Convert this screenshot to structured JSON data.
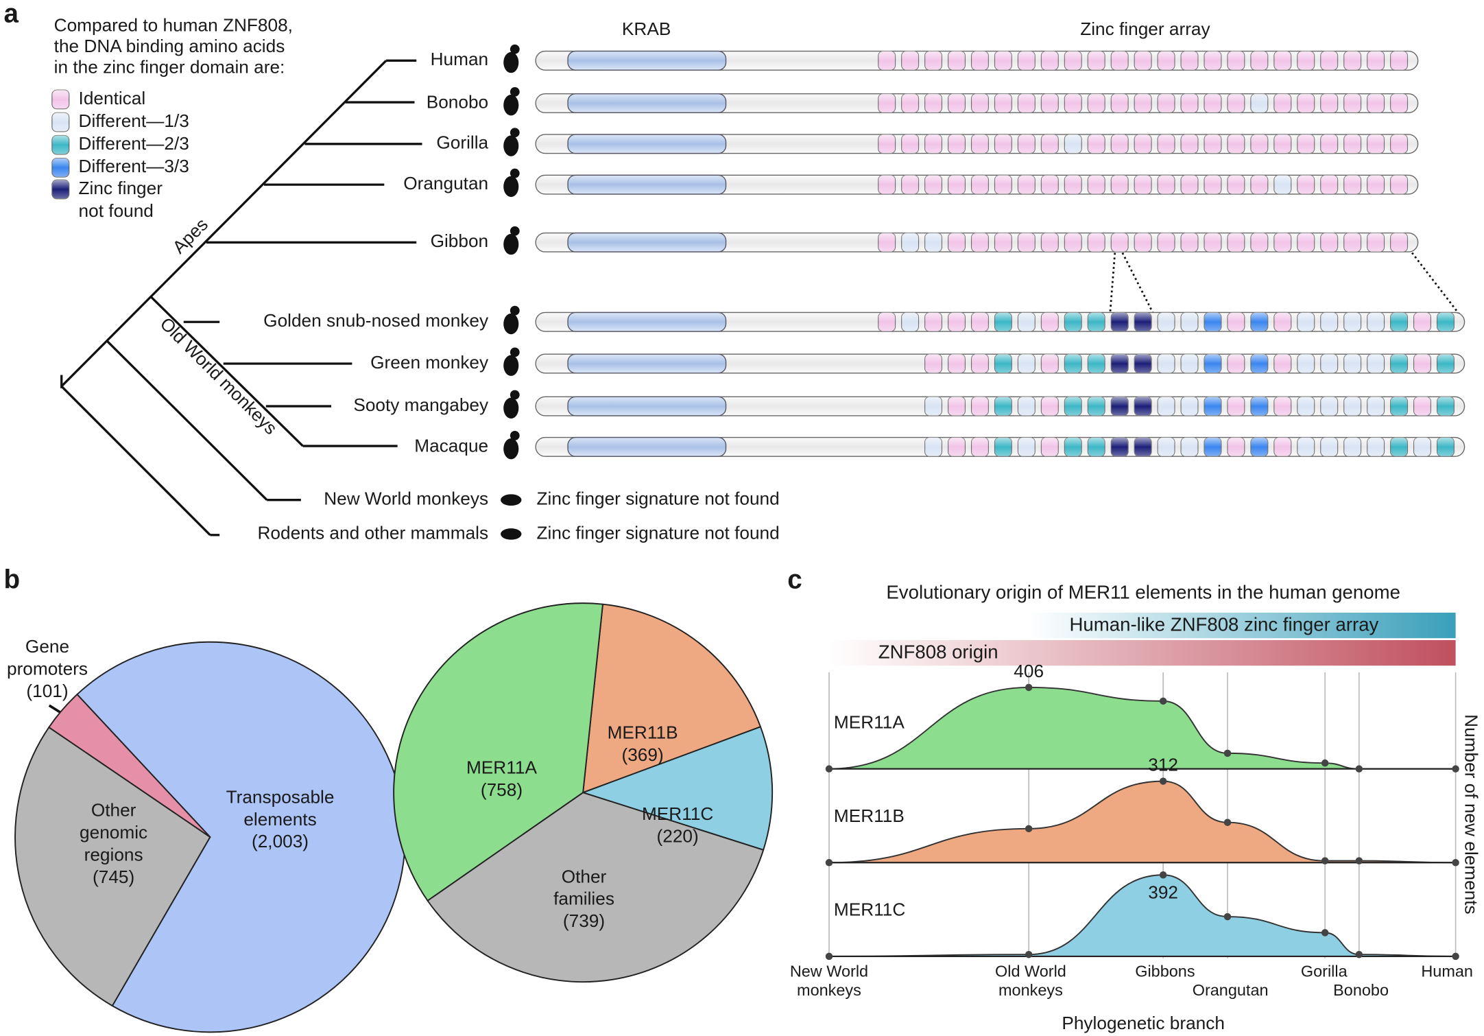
{
  "panel_a": {
    "label": "a",
    "legend_title": [
      "Compared to human ZNF808,",
      "the DNA binding amino acids",
      "in the zinc finger domain are:"
    ],
    "legend": [
      {
        "lines": [
          "Identical"
        ],
        "color": "#f2c4e8"
      },
      {
        "lines": [
          "Different—1/3"
        ],
        "color": "#d8e3f4"
      },
      {
        "lines": [
          "Different—2/3"
        ],
        "color": "#3db7c6"
      },
      {
        "lines": [
          "Different—3/3"
        ],
        "color": "#3b86ef"
      },
      {
        "lines": [
          "Zinc finger",
          "not found"
        ],
        "color": "#1c1f78"
      }
    ],
    "domains": [
      "KRAB",
      "Zinc finger array"
    ],
    "clades": [
      "Apes",
      "Old World monkeys"
    ],
    "species": [
      {
        "name": "Human",
        "fingers": [
          0,
          0,
          0,
          0,
          0,
          0,
          0,
          0,
          0,
          0,
          0,
          0,
          0,
          0,
          0,
          0,
          0,
          0,
          0,
          0,
          0,
          0,
          0
        ]
      },
      {
        "name": "Bonobo",
        "fingers": [
          0,
          0,
          0,
          0,
          0,
          0,
          0,
          0,
          0,
          0,
          0,
          0,
          0,
          0,
          0,
          0,
          1,
          0,
          0,
          0,
          0,
          0,
          0
        ]
      },
      {
        "name": "Gorilla",
        "fingers": [
          0,
          0,
          0,
          0,
          0,
          0,
          0,
          0,
          1,
          0,
          0,
          0,
          0,
          0,
          0,
          0,
          0,
          0,
          0,
          0,
          0,
          0,
          0
        ]
      },
      {
        "name": "Orangutan",
        "fingers": [
          0,
          0,
          0,
          0,
          0,
          0,
          0,
          0,
          0,
          0,
          0,
          0,
          0,
          0,
          0,
          0,
          0,
          1,
          0,
          0,
          0,
          0,
          0
        ]
      },
      {
        "name": "Gibbon",
        "fingers": [
          0,
          1,
          1,
          0,
          0,
          0,
          0,
          0,
          0,
          0,
          0,
          0,
          0,
          0,
          0,
          0,
          0,
          0,
          0,
          0,
          0,
          0,
          0
        ]
      },
      {
        "name": "Golden snub-nosed monkey",
        "fingers": [
          0,
          1,
          0,
          0,
          0,
          2,
          1,
          0,
          2,
          2,
          4,
          4,
          1,
          1,
          3,
          0,
          3,
          0,
          1,
          1,
          1,
          1,
          2,
          0,
          2
        ]
      },
      {
        "name": "Green monkey",
        "fingers": [
          null,
          null,
          0,
          0,
          0,
          2,
          1,
          0,
          2,
          2,
          4,
          4,
          1,
          1,
          3,
          0,
          3,
          0,
          1,
          1,
          1,
          1,
          2,
          0,
          2
        ]
      },
      {
        "name": "Sooty mangabey",
        "fingers": [
          null,
          null,
          1,
          0,
          0,
          2,
          1,
          0,
          2,
          2,
          4,
          4,
          1,
          1,
          3,
          0,
          3,
          0,
          1,
          1,
          1,
          1,
          2,
          0,
          2
        ]
      },
      {
        "name": "Macaque",
        "fingers": [
          null,
          null,
          1,
          0,
          0,
          2,
          1,
          0,
          2,
          2,
          4,
          4,
          1,
          1,
          3,
          0,
          3,
          0,
          1,
          1,
          1,
          1,
          2,
          1,
          2
        ]
      }
    ],
    "not_found": [
      {
        "name": "New World monkeys",
        "note": "Zinc finger signature not found"
      },
      {
        "name": "Rodents and other mammals",
        "note": "Zinc finger signature not found"
      }
    ]
  },
  "panel_b": {
    "label": "b",
    "pies": [
      {
        "slices": [
          {
            "lines": [
              "Transposable",
              "elements"
            ],
            "value": 2003,
            "value_label": "(2,003)",
            "color": "#adc4f7"
          },
          {
            "lines": [
              "Other",
              "genomic",
              "regions"
            ],
            "value": 745,
            "value_label": "(745)",
            "color": "#b7b7b7"
          },
          {
            "lines": [
              "Gene",
              "promoters"
            ],
            "value": 101,
            "value_label": "(101)",
            "color": "#e590a8"
          }
        ]
      },
      {
        "slices": [
          {
            "lines": [
              "MER11B"
            ],
            "value": 369,
            "value_label": "(369)",
            "color": "#eea882"
          },
          {
            "lines": [
              "MER11C"
            ],
            "value": 220,
            "value_label": "(220)",
            "color": "#8ecfe3"
          },
          {
            "lines": [
              "Other",
              "families"
            ],
            "value": 739,
            "value_label": "(739)",
            "color": "#b7b7b7"
          },
          {
            "lines": [
              "MER11A"
            ],
            "value": 758,
            "value_label": "(758)",
            "color": "#8ddd8f"
          }
        ]
      }
    ]
  },
  "panel_c": {
    "label": "c",
    "title": "Evolutionary origin of MER11 elements in the human genome",
    "bands": [
      {
        "label": "Human-like ZNF808 zinc finger array",
        "color": "#3a9fba"
      },
      {
        "label": "ZNF808 origin",
        "color": "#c0505f"
      }
    ],
    "categories": [
      [
        "New World",
        "monkeys"
      ],
      [
        "Old World",
        "monkeys"
      ],
      [
        "Gibbons"
      ],
      [
        "Orangutan"
      ],
      [
        "Gorilla"
      ],
      [
        "Bonobo"
      ],
      [
        "Human"
      ]
    ],
    "xlabel": "Phylogenetic branch",
    "ylabel": "Number of new elements",
    "series": [
      {
        "name": "MER11A",
        "color": "#8ddd8f",
        "values": [
          0,
          406,
          338,
          78,
          29,
          0,
          0
        ],
        "value_labels": [
          null,
          "406",
          null,
          null,
          null,
          null,
          null
        ]
      },
      {
        "name": "MER11B",
        "color": "#eea882",
        "values": [
          0,
          130,
          312,
          154,
          7,
          7,
          0
        ],
        "value_labels": [
          null,
          null,
          "312",
          null,
          null,
          null,
          null
        ]
      },
      {
        "name": "MER11C",
        "color": "#8ecfe3",
        "values": [
          0,
          9,
          392,
          191,
          114,
          9,
          0
        ],
        "value_labels": [
          null,
          null,
          "392",
          null,
          null,
          null,
          null
        ]
      }
    ]
  }
}
